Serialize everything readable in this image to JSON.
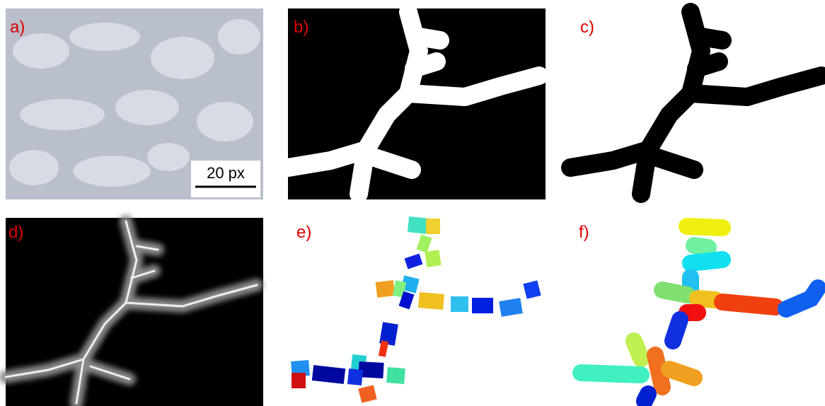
{
  "panels": [
    {
      "label": "a)"
    },
    {
      "label": "b)"
    },
    {
      "label": "c)"
    },
    {
      "label": "d)"
    },
    {
      "label": "e)"
    },
    {
      "label": "f)"
    }
  ],
  "scale_bar": {
    "label": "20 px"
  }
}
